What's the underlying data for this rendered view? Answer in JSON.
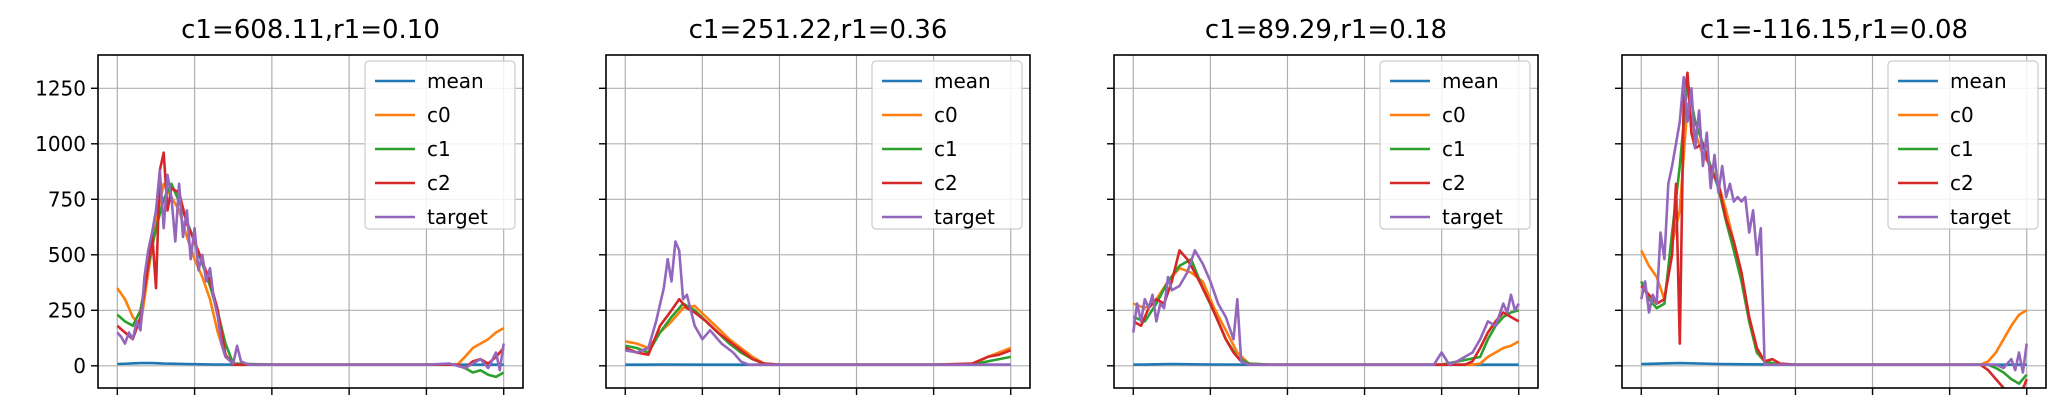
{
  "colors": {
    "mean": "#1f77b4",
    "c0": "#ff7f0e",
    "c1": "#2ca02c",
    "c2": "#d62728",
    "target": "#9467bd"
  },
  "chart_data": [
    {
      "type": "line",
      "title": "c1=608.11,r1=0.10",
      "xlim": [
        -5,
        105
      ],
      "ylim": [
        -100,
        1400
      ],
      "yticks": [
        0,
        250,
        500,
        750,
        1000,
        1250
      ],
      "xticks": [
        0,
        20,
        40,
        60,
        80,
        100
      ],
      "grid": true,
      "legend": "top-right",
      "series": [
        {
          "name": "mean",
          "x": [
            0,
            3,
            6,
            9,
            12,
            18,
            25,
            35,
            50,
            65,
            80,
            90,
            100
          ],
          "y": [
            8,
            10,
            12,
            12,
            10,
            8,
            6,
            5,
            5,
            5,
            5,
            5,
            5
          ]
        },
        {
          "name": "c0",
          "x": [
            0,
            2,
            4,
            6,
            7,
            8,
            10,
            12,
            14,
            16,
            18,
            20,
            22,
            24,
            26,
            28,
            30,
            35,
            40,
            50,
            60,
            70,
            80,
            85,
            88,
            90,
            92,
            94,
            96,
            98,
            100
          ],
          "y": [
            350,
            300,
            220,
            180,
            300,
            420,
            650,
            820,
            760,
            700,
            580,
            480,
            400,
            300,
            150,
            40,
            10,
            5,
            5,
            5,
            5,
            5,
            5,
            5,
            5,
            40,
            80,
            100,
            120,
            150,
            170
          ]
        },
        {
          "name": "c1",
          "x": [
            0,
            2,
            4,
            6,
            8,
            10,
            12,
            14,
            16,
            18,
            20,
            22,
            24,
            26,
            28,
            30,
            40,
            60,
            80,
            88,
            90,
            92,
            94,
            96,
            98,
            100
          ],
          "y": [
            230,
            200,
            180,
            250,
            450,
            620,
            750,
            820,
            740,
            650,
            560,
            460,
            360,
            240,
            100,
            10,
            5,
            5,
            5,
            5,
            -10,
            -30,
            -20,
            -40,
            -50,
            -30
          ]
        },
        {
          "name": "c2",
          "x": [
            0,
            2,
            4,
            6,
            8,
            9,
            10,
            11,
            12,
            13,
            14,
            16,
            18,
            20,
            22,
            24,
            26,
            28,
            30,
            35,
            40,
            60,
            80,
            88,
            90,
            92,
            94,
            96,
            98,
            100
          ],
          "y": [
            180,
            150,
            120,
            220,
            450,
            600,
            350,
            880,
            960,
            700,
            800,
            780,
            640,
            560,
            470,
            380,
            250,
            50,
            5,
            5,
            5,
            5,
            5,
            5,
            -10,
            20,
            30,
            10,
            40,
            80
          ]
        },
        {
          "name": "target",
          "x": [
            0,
            1,
            2,
            3,
            4,
            5,
            6,
            7,
            8,
            9,
            10,
            11,
            12,
            13,
            14,
            15,
            16,
            17,
            18,
            19,
            20,
            21,
            22,
            23,
            24,
            25,
            26,
            27,
            28,
            30,
            31,
            32,
            34,
            36,
            40,
            60,
            80,
            86,
            90,
            94,
            96,
            98,
            99,
            100
          ],
          "y": [
            150,
            130,
            100,
            150,
            120,
            200,
            160,
            400,
            520,
            600,
            700,
            880,
            620,
            860,
            760,
            560,
            820,
            580,
            700,
            480,
            620,
            430,
            500,
            380,
            440,
            300,
            220,
            100,
            40,
            10,
            90,
            20,
            5,
            5,
            5,
            5,
            5,
            10,
            -10,
            30,
            -10,
            60,
            -20,
            100
          ]
        }
      ]
    },
    {
      "type": "line",
      "title": "c1=251.22,r1=0.36",
      "xlim": [
        -5,
        105
      ],
      "ylim": [
        -100,
        1400
      ],
      "xticks": [
        0,
        20,
        40,
        60,
        80,
        100
      ],
      "grid": true,
      "legend": "top-right",
      "series": [
        {
          "name": "mean",
          "x": [
            0,
            5,
            10,
            20,
            40,
            60,
            80,
            100
          ],
          "y": [
            5,
            5,
            6,
            5,
            5,
            5,
            5,
            5
          ]
        },
        {
          "name": "c0",
          "x": [
            0,
            3,
            6,
            9,
            12,
            15,
            18,
            21,
            24,
            27,
            30,
            33,
            36,
            40,
            50,
            60,
            70,
            80,
            90,
            94,
            97,
            100
          ],
          "y": [
            110,
            100,
            80,
            150,
            200,
            260,
            270,
            220,
            170,
            120,
            80,
            40,
            10,
            5,
            5,
            5,
            5,
            5,
            5,
            40,
            60,
            80
          ]
        },
        {
          "name": "c1",
          "x": [
            0,
            3,
            6,
            9,
            12,
            15,
            18,
            21,
            24,
            27,
            30,
            33,
            36,
            40,
            60,
            80,
            90,
            94,
            97,
            100
          ],
          "y": [
            90,
            80,
            60,
            150,
            220,
            280,
            250,
            200,
            150,
            100,
            60,
            30,
            10,
            5,
            5,
            5,
            5,
            20,
            30,
            40
          ]
        },
        {
          "name": "c2",
          "x": [
            0,
            3,
            6,
            9,
            12,
            14,
            16,
            18,
            21,
            24,
            27,
            30,
            33,
            36,
            40,
            60,
            80,
            90,
            94,
            97,
            100
          ],
          "y": [
            80,
            60,
            50,
            180,
            250,
            300,
            260,
            240,
            200,
            150,
            110,
            70,
            30,
            10,
            5,
            5,
            5,
            10,
            40,
            50,
            70
          ]
        },
        {
          "name": "target",
          "x": [
            0,
            3,
            6,
            8,
            10,
            11,
            12,
            13,
            14,
            15,
            16,
            17,
            18,
            20,
            22,
            25,
            28,
            30,
            32,
            36,
            40,
            60,
            80,
            100
          ],
          "y": [
            70,
            60,
            80,
            200,
            350,
            480,
            380,
            560,
            520,
            300,
            320,
            250,
            180,
            120,
            160,
            100,
            60,
            20,
            5,
            5,
            5,
            5,
            5,
            5
          ]
        }
      ]
    },
    {
      "type": "line",
      "title": "c1=89.29,r1=0.18",
      "xlim": [
        -5,
        105
      ],
      "ylim": [
        -100,
        1400
      ],
      "xticks": [
        0,
        20,
        40,
        60,
        80,
        100
      ],
      "grid": true,
      "legend": "top-right",
      "series": [
        {
          "name": "mean",
          "x": [
            0,
            10,
            20,
            40,
            60,
            80,
            100
          ],
          "y": [
            5,
            8,
            6,
            5,
            5,
            5,
            5
          ]
        },
        {
          "name": "c0",
          "x": [
            0,
            3,
            6,
            9,
            12,
            15,
            18,
            21,
            24,
            27,
            30,
            35,
            40,
            60,
            80,
            88,
            90,
            92,
            94,
            96,
            98,
            100
          ],
          "y": [
            280,
            260,
            300,
            380,
            440,
            420,
            380,
            260,
            160,
            60,
            10,
            5,
            5,
            5,
            5,
            5,
            10,
            40,
            60,
            80,
            90,
            110
          ]
        },
        {
          "name": "c1",
          "x": [
            0,
            3,
            6,
            9,
            12,
            15,
            18,
            21,
            24,
            27,
            30,
            35,
            40,
            60,
            80,
            90,
            92,
            94,
            96,
            98,
            100
          ],
          "y": [
            220,
            200,
            280,
            380,
            450,
            480,
            350,
            240,
            120,
            40,
            10,
            5,
            5,
            5,
            5,
            40,
            120,
            180,
            220,
            240,
            250
          ]
        },
        {
          "name": "c2",
          "x": [
            0,
            2,
            4,
            6,
            8,
            10,
            12,
            14,
            16,
            18,
            20,
            22,
            24,
            26,
            28,
            30,
            35,
            40,
            60,
            80,
            86,
            88,
            90,
            92,
            94,
            96,
            98,
            100
          ],
          "y": [
            200,
            180,
            260,
            300,
            280,
            380,
            520,
            480,
            420,
            350,
            280,
            200,
            120,
            60,
            20,
            5,
            5,
            5,
            5,
            5,
            5,
            20,
            80,
            150,
            200,
            240,
            220,
            200
          ]
        },
        {
          "name": "target",
          "x": [
            0,
            1,
            2,
            3,
            4,
            5,
            6,
            7,
            8,
            9,
            10,
            12,
            14,
            16,
            18,
            20,
            22,
            24,
            26,
            27,
            28,
            30,
            32,
            34,
            36,
            40,
            60,
            78,
            80,
            82,
            84,
            86,
            88,
            90,
            92,
            94,
            96,
            97,
            98,
            99,
            100
          ],
          "y": [
            150,
            280,
            200,
            300,
            260,
            320,
            200,
            280,
            260,
            400,
            340,
            360,
            420,
            520,
            460,
            380,
            280,
            220,
            120,
            300,
            20,
            5,
            5,
            5,
            5,
            5,
            5,
            5,
            60,
            5,
            20,
            40,
            60,
            120,
            200,
            180,
            280,
            240,
            320,
            250,
            280
          ]
        }
      ]
    },
    {
      "type": "line",
      "title": "c1=-116.15,r1=0.08",
      "xlim": [
        -5,
        105
      ],
      "ylim": [
        -100,
        1400
      ],
      "xticks": [
        0,
        20,
        40,
        60,
        80,
        100
      ],
      "grid": true,
      "legend": "top-right",
      "series": [
        {
          "name": "mean",
          "x": [
            0,
            5,
            10,
            20,
            40,
            60,
            80,
            100
          ],
          "y": [
            8,
            10,
            12,
            8,
            5,
            5,
            5,
            5
          ]
        },
        {
          "name": "c0",
          "x": [
            0,
            2,
            4,
            6,
            8,
            10,
            12,
            14,
            16,
            18,
            20,
            22,
            24,
            26,
            28,
            30,
            32,
            34,
            36,
            40,
            60,
            80,
            88,
            90,
            92,
            94,
            96,
            98,
            100
          ],
          "y": [
            520,
            450,
            400,
            300,
            550,
            700,
            1180,
            1050,
            950,
            900,
            820,
            700,
            560,
            420,
            200,
            60,
            20,
            10,
            5,
            5,
            5,
            5,
            5,
            20,
            60,
            120,
            180,
            230,
            250
          ]
        },
        {
          "name": "c1",
          "x": [
            0,
            2,
            4,
            6,
            8,
            10,
            12,
            14,
            16,
            18,
            20,
            22,
            24,
            26,
            28,
            30,
            32,
            36,
            40,
            60,
            80,
            90,
            92,
            94,
            96,
            98,
            100
          ],
          "y": [
            380,
            300,
            260,
            280,
            600,
            900,
            1280,
            1100,
            1000,
            900,
            800,
            650,
            520,
            380,
            200,
            60,
            20,
            5,
            5,
            5,
            5,
            5,
            -10,
            -30,
            -60,
            -80,
            -40
          ]
        },
        {
          "name": "c2",
          "x": [
            0,
            2,
            4,
            6,
            8,
            9,
            10,
            11,
            12,
            13,
            14,
            16,
            18,
            20,
            22,
            24,
            26,
            28,
            30,
            32,
            34,
            36,
            40,
            60,
            80,
            88,
            90,
            92,
            94,
            96,
            98,
            100
          ],
          "y": [
            360,
            320,
            280,
            300,
            500,
            820,
            100,
            1200,
            1320,
            1050,
            980,
            1000,
            880,
            820,
            660,
            560,
            420,
            220,
            80,
            20,
            30,
            10,
            5,
            5,
            5,
            5,
            -20,
            -60,
            -100,
            -120,
            -150,
            -60
          ]
        },
        {
          "name": "target",
          "x": [
            0,
            1,
            2,
            3,
            4,
            5,
            6,
            7,
            8,
            9,
            10,
            11,
            12,
            13,
            14,
            15,
            16,
            17,
            18,
            19,
            20,
            21,
            22,
            23,
            24,
            25,
            26,
            27,
            28,
            29,
            30,
            31,
            32,
            36,
            40,
            60,
            80,
            92,
            94,
            96,
            97,
            98,
            99,
            100
          ],
          "y": [
            300,
            380,
            240,
            320,
            280,
            600,
            480,
            820,
            900,
            1000,
            1100,
            1300,
            1100,
            1250,
            980,
            1150,
            900,
            1050,
            800,
            950,
            780,
            900,
            760,
            820,
            740,
            760,
            740,
            760,
            600,
            700,
            500,
            620,
            5,
            5,
            5,
            5,
            5,
            5,
            -10,
            30,
            -20,
            60,
            -30,
            100
          ]
        }
      ]
    }
  ]
}
